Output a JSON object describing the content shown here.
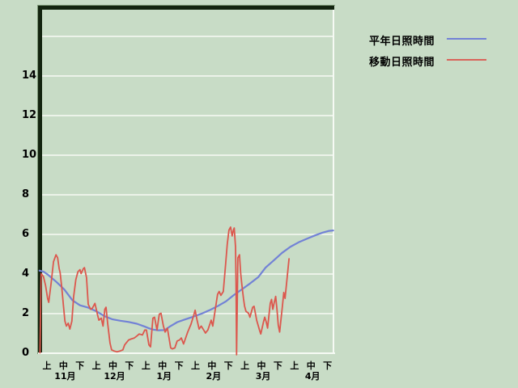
{
  "colors": {
    "background": "#c8dcc6",
    "gridline": "#ecf3e9",
    "frame_dark": "#13240f",
    "frame_light": "#f6faf4",
    "text": "#000000"
  },
  "legend": {
    "items": [
      {
        "label": "平年日照時間",
        "color": "#7282d6"
      },
      {
        "label": "移動日照時間",
        "color": "#d9645a"
      }
    ]
  },
  "chart_data": {
    "type": "line",
    "title": "",
    "xlabel": "",
    "ylabel": "",
    "ylim": [
      0,
      17.4
    ],
    "yticks": [
      0,
      2,
      4,
      6,
      8,
      10,
      12,
      14
    ],
    "grid_values": [
      2,
      4,
      6,
      8,
      10,
      12,
      14,
      16
    ],
    "grid": true,
    "legend_position": "top-right",
    "x_axis": {
      "unit": "days-from-Nov-1",
      "months": [
        {
          "label": "11月",
          "periods": [
            "上",
            "中",
            "下"
          ]
        },
        {
          "label": "12月",
          "periods": [
            "上",
            "中",
            "下"
          ]
        },
        {
          "label": "1月",
          "periods": [
            "上",
            "中",
            "下"
          ]
        },
        {
          "label": "2月",
          "periods": [
            "上",
            "中",
            "下"
          ]
        },
        {
          "label": "3月",
          "periods": [
            "上",
            "中",
            "下"
          ]
        },
        {
          "label": "4月",
          "periods": [
            "上",
            "中",
            "下"
          ]
        }
      ]
    },
    "series": [
      {
        "name": "平年日照時間",
        "color": "#7282d6",
        "stroke_width": 2.2,
        "points": [
          [
            0,
            4.15
          ],
          [
            2.5,
            4.1
          ],
          [
            5,
            3.95
          ],
          [
            10,
            3.6
          ],
          [
            15,
            3.2
          ],
          [
            20,
            2.65
          ],
          [
            24.5,
            2.4
          ],
          [
            29.5,
            2.28
          ],
          [
            34.5,
            2.1
          ],
          [
            39.5,
            1.85
          ],
          [
            44,
            1.7
          ],
          [
            49,
            1.62
          ],
          [
            54,
            1.56
          ],
          [
            59,
            1.47
          ],
          [
            64,
            1.32
          ],
          [
            66,
            1.25
          ],
          [
            69,
            1.17
          ],
          [
            72,
            1.14
          ],
          [
            76,
            1.15
          ],
          [
            79,
            1.33
          ],
          [
            83.5,
            1.55
          ],
          [
            88,
            1.68
          ],
          [
            93,
            1.82
          ],
          [
            98,
            1.97
          ],
          [
            103,
            2.15
          ],
          [
            108,
            2.36
          ],
          [
            113,
            2.6
          ],
          [
            117.5,
            2.9
          ],
          [
            122.5,
            3.2
          ],
          [
            127.5,
            3.5
          ],
          [
            132.5,
            3.82
          ],
          [
            137,
            4.3
          ],
          [
            142,
            4.67
          ],
          [
            147,
            5.05
          ],
          [
            152,
            5.35
          ],
          [
            157,
            5.58
          ],
          [
            162,
            5.76
          ],
          [
            167,
            5.93
          ],
          [
            171.5,
            6.07
          ],
          [
            175.5,
            6.16
          ],
          [
            178,
            6.18
          ]
        ]
      },
      {
        "name": "移動日照時間",
        "color": "#dc574d",
        "stroke_width": 1.8,
        "points": [
          [
            0.3,
            0
          ],
          [
            1,
            4.0
          ],
          [
            2.4,
            3.85
          ],
          [
            3.7,
            3.4
          ],
          [
            4.9,
            2.75
          ],
          [
            5.6,
            2.55
          ],
          [
            7,
            3.5
          ],
          [
            8.5,
            4.6
          ],
          [
            10,
            4.95
          ],
          [
            11,
            4.8
          ],
          [
            11.9,
            4.25
          ],
          [
            12.5,
            4.05
          ],
          [
            13.5,
            3.3
          ],
          [
            14.7,
            2.2
          ],
          [
            15.4,
            1.6
          ],
          [
            16.3,
            1.35
          ],
          [
            17.4,
            1.5
          ],
          [
            18.4,
            1.2
          ],
          [
            19.6,
            1.6
          ],
          [
            20.7,
            2.85
          ],
          [
            22,
            3.7
          ],
          [
            23.3,
            4.1
          ],
          [
            24.5,
            4.2
          ],
          [
            25.2,
            4.0
          ],
          [
            26.6,
            4.25
          ],
          [
            27.2,
            4.3
          ],
          [
            28.5,
            3.8
          ],
          [
            29.5,
            2.45
          ],
          [
            31,
            2.2
          ],
          [
            32,
            2.25
          ],
          [
            33.6,
            2.5
          ],
          [
            35.2,
            1.9
          ],
          [
            36,
            1.65
          ],
          [
            37.4,
            1.75
          ],
          [
            38.5,
            1.35
          ],
          [
            39.6,
            2.2
          ],
          [
            40.3,
            2.3
          ],
          [
            41.3,
            1.5
          ],
          [
            42.7,
            0.5
          ],
          [
            43.7,
            0.15
          ],
          [
            45,
            0.1
          ],
          [
            47,
            0.05
          ],
          [
            49,
            0.1
          ],
          [
            50.5,
            0.15
          ],
          [
            51.6,
            0.4
          ],
          [
            54,
            0.65
          ],
          [
            55.5,
            0.7
          ],
          [
            57.5,
            0.75
          ],
          [
            59,
            0.85
          ],
          [
            60.4,
            0.95
          ],
          [
            62.4,
            0.9
          ],
          [
            63.8,
            1.15
          ],
          [
            64.8,
            1.15
          ],
          [
            66.3,
            0.4
          ],
          [
            67.3,
            0.3
          ],
          [
            68.7,
            1.75
          ],
          [
            69.7,
            1.8
          ],
          [
            71.2,
            1.15
          ],
          [
            72.6,
            1.95
          ],
          [
            73.6,
            2.0
          ],
          [
            75.1,
            1.35
          ],
          [
            76.1,
            1.05
          ],
          [
            77.5,
            1.25
          ],
          [
            79.5,
            0.25
          ],
          [
            80.5,
            0.2
          ],
          [
            82,
            0.25
          ],
          [
            83.4,
            0.6
          ],
          [
            84.9,
            0.65
          ],
          [
            85.9,
            0.75
          ],
          [
            87.3,
            0.45
          ],
          [
            89.8,
            1.05
          ],
          [
            91.8,
            1.45
          ],
          [
            93.5,
            1.9
          ],
          [
            94.3,
            2.15
          ],
          [
            95.5,
            1.65
          ],
          [
            96.7,
            1.2
          ],
          [
            98,
            1.35
          ],
          [
            99.5,
            1.15
          ],
          [
            100.6,
            1.0
          ],
          [
            102,
            1.15
          ],
          [
            104,
            1.65
          ],
          [
            105,
            1.35
          ],
          [
            106.5,
            2.2
          ],
          [
            107.9,
            2.95
          ],
          [
            108.9,
            3.1
          ],
          [
            109.9,
            2.9
          ],
          [
            111.4,
            3.1
          ],
          [
            112.8,
            4.5
          ],
          [
            113.8,
            5.5
          ],
          [
            114.8,
            6.2
          ],
          [
            115.8,
            6.35
          ],
          [
            116.7,
            5.9
          ],
          [
            117.5,
            6.2
          ],
          [
            118,
            6.3
          ],
          [
            118.8,
            5.35
          ],
          [
            119.1,
            3.6
          ],
          [
            119.4,
            -0.1
          ],
          [
            120.2,
            4.8
          ],
          [
            121.2,
            4.95
          ],
          [
            121.9,
            4.0
          ],
          [
            122.6,
            3.45
          ],
          [
            123.6,
            2.75
          ],
          [
            124.3,
            2.35
          ],
          [
            125.1,
            2.1
          ],
          [
            126.7,
            2.0
          ],
          [
            127.5,
            1.8
          ],
          [
            129.2,
            2.3
          ],
          [
            130,
            2.35
          ],
          [
            131.6,
            1.65
          ],
          [
            133.3,
            1.15
          ],
          [
            134.1,
            0.95
          ],
          [
            135.7,
            1.55
          ],
          [
            136.5,
            1.8
          ],
          [
            137.4,
            1.55
          ],
          [
            138.2,
            1.25
          ],
          [
            139.8,
            2.5
          ],
          [
            140.6,
            2.7
          ],
          [
            141.4,
            2.2
          ],
          [
            142.3,
            2.55
          ],
          [
            143.1,
            2.85
          ],
          [
            143.9,
            2.2
          ],
          [
            144.7,
            1.4
          ],
          [
            145.5,
            1.05
          ],
          [
            147.2,
            2.35
          ],
          [
            148,
            3.05
          ],
          [
            148.8,
            2.75
          ],
          [
            150.4,
            4.1
          ],
          [
            151.2,
            4.75
          ]
        ]
      }
    ]
  }
}
